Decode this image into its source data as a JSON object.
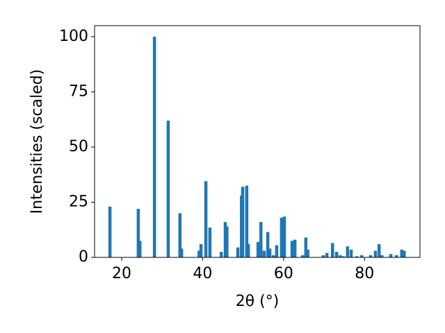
{
  "chart_data": {
    "type": "bar",
    "x_label": "2θ (°)",
    "y_label": "Intensities (scaled)",
    "x": [
      17.1,
      24.1,
      24.5,
      28.1,
      31.5,
      34.4,
      34.8,
      39.1,
      39.6,
      40.8,
      41.8,
      44.6,
      45.6,
      46.0,
      48.7,
      49.6,
      49.9,
      50.9,
      51.3,
      53.7,
      54.4,
      55.2,
      56.1,
      56.6,
      57.5,
      58.3,
      59.5,
      60.2,
      62.1,
      62.8,
      64.7,
      65.5,
      66.0,
      69.8,
      70.7,
      72.1,
      73.1,
      74.0,
      74.8,
      75.8,
      76.7,
      78.1,
      79.3,
      81.5,
      82.7,
      83.6,
      84.3,
      86.5,
      87.9,
      89.2,
      89.8
    ],
    "values": [
      23,
      22,
      7.5,
      100,
      62,
      20,
      4,
      3,
      6,
      34.5,
      13.5,
      2.5,
      16,
      14,
      4.5,
      28,
      32,
      32.5,
      6,
      7,
      16,
      3,
      11.5,
      4,
      1,
      5.5,
      18,
      18.5,
      7.5,
      8,
      1,
      9,
      3.5,
      1,
      2,
      6.5,
      2.5,
      1,
      0.5,
      5,
      3.5,
      0.5,
      1,
      1,
      3,
      6,
      1,
      1.5,
      1,
      3.5,
      3
    ],
    "color": "#1f77b4",
    "xlim": [
      13.3,
      93.7
    ],
    "xticks": [
      20,
      40,
      60,
      80
    ],
    "ylim": [
      0,
      105
    ],
    "yticks": [
      0,
      25,
      50,
      75,
      100
    ],
    "grid": false
  }
}
